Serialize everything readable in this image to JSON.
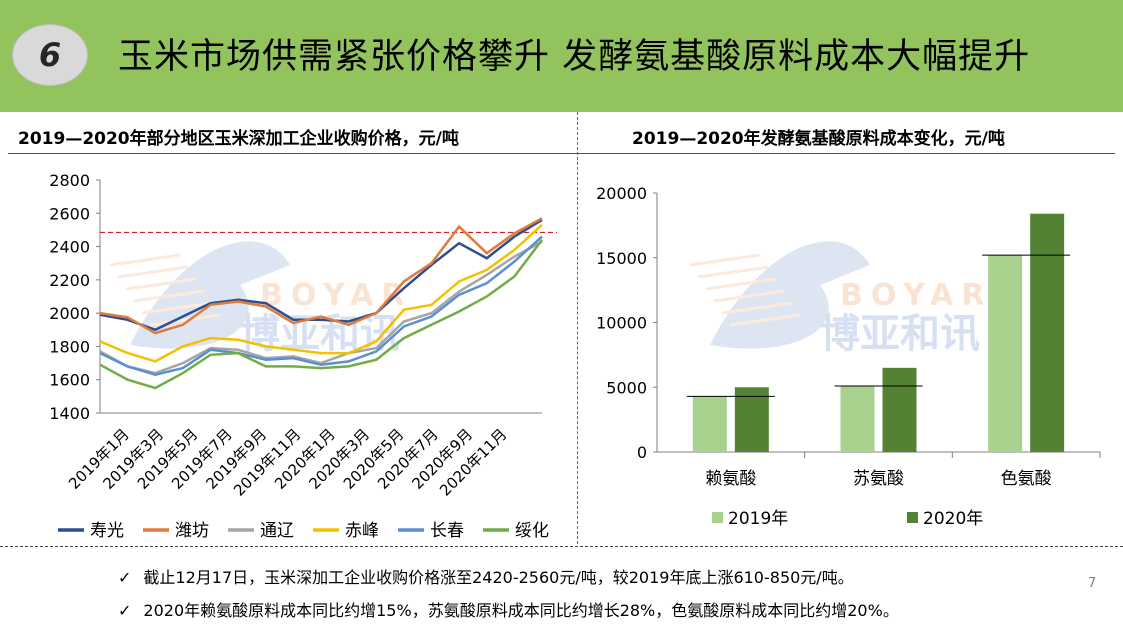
{
  "header": {
    "number": "6",
    "title": "玉米市场供需紧张价格攀升 发酵氨基酸原料成本大幅提升"
  },
  "colors": {
    "header_bg": "#93c35c",
    "shouguang": "#2e4f8f",
    "weifang": "#e07b39",
    "tongliao": "#a6a6a6",
    "chifeng": "#f2c200",
    "changchun": "#5b8fd1",
    "suihua": "#70ad47",
    "bar_2019": "#a9d18e",
    "bar_2020": "#548235"
  },
  "watermark": {
    "latin": "BOYAR",
    "cn": "博亚和讯"
  },
  "chart_data": [
    {
      "type": "line",
      "title": "2019—2020年部分地区玉米深加工企业收购价格，元/吨",
      "ylim": [
        1400,
        2800
      ],
      "yticks": [
        "2800",
        "2600",
        "2400",
        "2200",
        "2000",
        "1800",
        "1600",
        "1400"
      ],
      "x_labels": [
        "2019年1月",
        "2019年3月",
        "2019年5月",
        "2019年7月",
        "2019年9月",
        "2019年11月",
        "2020年1月",
        "2020年3月",
        "2020年5月",
        "2020年7月",
        "2020年9月",
        "2020年11月"
      ],
      "reference_line": 2485,
      "legend": "bottom",
      "series": [
        {
          "name": "寿光",
          "values": [
            1990,
            1960,
            1900,
            1980,
            2060,
            2080,
            2060,
            1960,
            1960,
            1950,
            2000,
            2150,
            2290,
            2420,
            2330,
            2460,
            2560
          ]
        },
        {
          "name": "潍坊",
          "values": [
            2000,
            1975,
            1880,
            1930,
            2050,
            2070,
            2040,
            1940,
            1980,
            1930,
            2000,
            2190,
            2300,
            2520,
            2360,
            2480,
            2570
          ]
        },
        {
          "name": "通辽",
          "values": [
            1770,
            1680,
            1640,
            1700,
            1790,
            1780,
            1730,
            1740,
            1700,
            1760,
            1790,
            1950,
            2000,
            2130,
            2230,
            2340,
            2430
          ]
        },
        {
          "name": "赤峰",
          "values": [
            1830,
            1760,
            1710,
            1800,
            1850,
            1840,
            1800,
            1780,
            1760,
            1760,
            1830,
            2020,
            2050,
            2190,
            2260,
            2380,
            2530
          ]
        },
        {
          "name": "长春",
          "values": [
            1760,
            1680,
            1630,
            1670,
            1780,
            1760,
            1720,
            1730,
            1690,
            1710,
            1770,
            1920,
            1980,
            2110,
            2180,
            2310,
            2460
          ]
        },
        {
          "name": "绥化",
          "values": [
            1690,
            1600,
            1550,
            1640,
            1750,
            1760,
            1680,
            1680,
            1670,
            1680,
            1720,
            1850,
            1930,
            2010,
            2100,
            2220,
            2440
          ]
        }
      ]
    },
    {
      "type": "bar",
      "title": "2019—2020年发酵氨基酸原料成本变化，元/吨",
      "categories": [
        "赖氨酸",
        "苏氨酸",
        "色氨酸"
      ],
      "ylim": [
        0,
        20000
      ],
      "yticks": [
        "20000",
        "15000",
        "10000",
        "5000",
        "0"
      ],
      "legend": "bottom",
      "series": [
        {
          "name": "2019年",
          "values": [
            4300,
            5100,
            15200
          ]
        },
        {
          "name": "2020年",
          "values": [
            5000,
            6500,
            18400
          ]
        }
      ]
    }
  ],
  "notes": [
    "截止12月17日，玉米深加工企业收购价格涨至2420-2560元/吨，较2019年底上涨610-850元/吨。",
    "2020年赖氨酸原料成本同比约增15%，苏氨酸原料成本同比约增长28%，色氨酸原料成本同比约增20%。"
  ],
  "page_number": "7"
}
